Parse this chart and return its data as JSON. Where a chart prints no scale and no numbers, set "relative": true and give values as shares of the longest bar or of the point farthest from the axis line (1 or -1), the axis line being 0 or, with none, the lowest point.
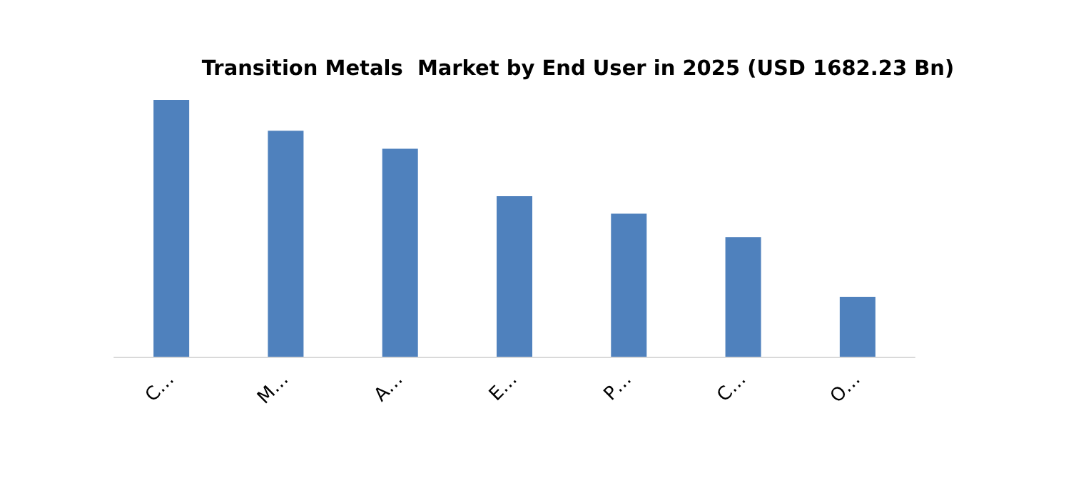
{
  "chart_data": {
    "type": "bar",
    "title": "Transition Metals  Market by End User in 2025 (USD 1682.23 Bn)",
    "categories": [
      "C…",
      "M…",
      "A…",
      "E…",
      "P…",
      "C…",
      "O…"
    ],
    "values": [
      1,
      0.88,
      0.81,
      0.625,
      0.557,
      0.466,
      0.233
    ],
    "color": "#4f81bd",
    "relative": true
  }
}
